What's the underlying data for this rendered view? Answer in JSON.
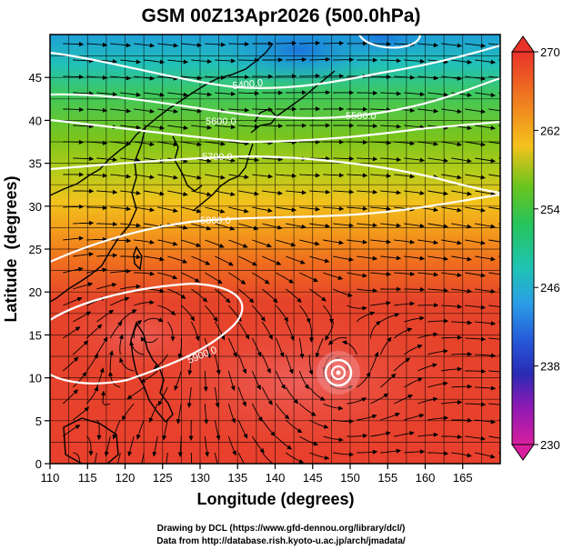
{
  "title": "GSM 00Z13Apr2026 (500.0hPa)",
  "axes": {
    "xlabel": "Longitude (degrees)",
    "ylabel": "Latitude  (degrees)",
    "xticks": [
      "110",
      "115",
      "120",
      "125",
      "130",
      "135",
      "140",
      "145",
      "150",
      "155",
      "160",
      "165"
    ],
    "yticks": [
      "0",
      "5",
      "10",
      "15",
      "20",
      "25",
      "30",
      "35",
      "40",
      "45"
    ]
  },
  "colorbar": {
    "labels": [
      "270",
      "262",
      "254",
      "246",
      "238",
      "230"
    ],
    "colors": [
      "#e8332a",
      "#f07a20",
      "#f4c21c",
      "#6cc41c",
      "#25c45c",
      "#1fc4b4",
      "#2a9ee6",
      "#2656d8",
      "#2a2bb4",
      "#8a1ab4",
      "#d81e9e"
    ]
  },
  "contours": [
    {
      "label": "5400.0"
    },
    {
      "label": "5500.0"
    },
    {
      "label": "5600.0"
    },
    {
      "label": "5700.0"
    },
    {
      "label": "5800.0"
    },
    {
      "label": "5900.0"
    }
  ],
  "credits": {
    "line1": "Drawing by DCL (https://www.gfd-dennou.org/library/dcl/)",
    "line2": "Data from http://database.rish.kyoto-u.ac.jp/arch/jmadata/"
  },
  "chart_data": {
    "type": "map",
    "title": "GSM 00Z13Apr2026 (500.0hPa)",
    "xlabel": "Longitude (degrees)",
    "ylabel": "Latitude  (degrees)",
    "xlim": [
      110,
      170
    ],
    "ylim": [
      0,
      50
    ],
    "colorbar_range": [
      230,
      270
    ],
    "colorbar_ticks": [
      230,
      238,
      246,
      254,
      262,
      270
    ],
    "contour_levels": [
      5400,
      5500,
      5600,
      5700,
      5800,
      5900
    ]
  }
}
